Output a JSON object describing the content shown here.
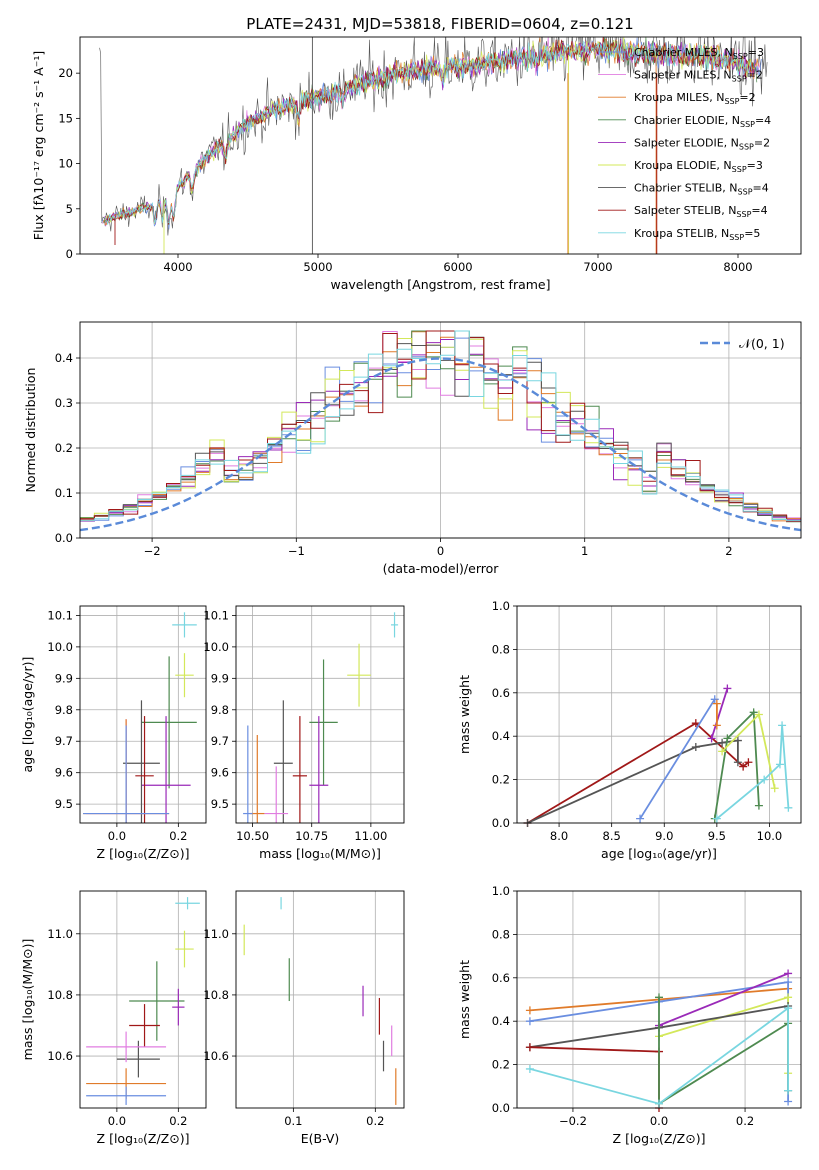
{
  "figure_title": "PLATE=2431, MJD=53818, FIBERID=0604, z=0.121",
  "colors": {
    "s1": "#6a8ee0",
    "s2": "#e07de0",
    "s3": "#e07b2a",
    "s4": "#4e8a50",
    "s5": "#9a2ab8",
    "s6": "#d3e85a",
    "s7": "#555555",
    "s8": "#a01818",
    "s9": "#79d6e0"
  },
  "chart_data": [
    {
      "id": "spectrum",
      "type": "line",
      "xlabel": "wavelength [Angstrom, rest frame]",
      "ylabel": "Flux [fλ10⁻¹⁷ erg cm⁻² s⁻¹ A⁻¹]",
      "xlim": [
        3300,
        8450
      ],
      "ylim": [
        0,
        24
      ],
      "xticks": [
        4000,
        5000,
        6000,
        7000,
        8000
      ],
      "yticks": [
        0,
        5,
        10,
        15,
        20
      ],
      "legend_position": "right",
      "continuum": [
        [
          3450,
          3.6
        ],
        [
          3600,
          4.4
        ],
        [
          3800,
          5.2
        ],
        [
          3950,
          6.5
        ],
        [
          4100,
          9.0
        ],
        [
          4300,
          12.0
        ],
        [
          4500,
          14.5
        ],
        [
          4700,
          16.0
        ],
        [
          4900,
          17.0
        ],
        [
          5100,
          17.8
        ],
        [
          5300,
          18.8
        ],
        [
          5500,
          19.8
        ],
        [
          5700,
          20.3
        ],
        [
          5900,
          20.7
        ],
        [
          6100,
          20.9
        ],
        [
          6300,
          21.3
        ],
        [
          6500,
          21.8
        ],
        [
          6700,
          22.3
        ],
        [
          6900,
          22.5
        ],
        [
          7100,
          22.6
        ],
        [
          7300,
          22.4
        ],
        [
          7500,
          22.2
        ],
        [
          7700,
          22.0
        ],
        [
          7900,
          21.4
        ],
        [
          8100,
          20.8
        ],
        [
          8200,
          20.5
        ]
      ],
      "series": [
        {
          "name": "Chabrier MILES, N_SSP=3",
          "label": "Chabrier MILES, N",
          "sub": "SSP",
          "tail": "=3",
          "color": "#6a8ee0"
        },
        {
          "name": "Salpeter MILES, N_SSP=2",
          "label": "Salpeter MILES, N",
          "sub": "SSP",
          "tail": "=2",
          "color": "#e07de0"
        },
        {
          "name": "Kroupa MILES, N_SSP=2",
          "label": "Kroupa MILES, N",
          "sub": "SSP",
          "tail": "=2",
          "color": "#e07b2a"
        },
        {
          "name": "Chabrier ELODIE, N_SSP=4",
          "label": "Chabrier ELODIE, N",
          "sub": "SSP",
          "tail": "=4",
          "color": "#4e8a50"
        },
        {
          "name": "Salpeter ELODIE, N_SSP=2",
          "label": "Salpeter ELODIE, N",
          "sub": "SSP",
          "tail": "=2",
          "color": "#9a2ab8"
        },
        {
          "name": "Kroupa ELODIE, N_SSP=3",
          "label": "Kroupa ELODIE, N",
          "sub": "SSP",
          "tail": "=3",
          "color": "#d3e85a"
        },
        {
          "name": "Chabrier STELIB, N_SSP=4",
          "label": "Chabrier STELIB, N",
          "sub": "SSP",
          "tail": "=4",
          "color": "#555555"
        },
        {
          "name": "Salpeter STELIB, N_SSP=4",
          "label": "Salpeter STELIB, N",
          "sub": "SSP",
          "tail": "=4",
          "color": "#a01818"
        },
        {
          "name": "Kroupa STELIB, N_SSP=5",
          "label": "Kroupa STELIB, N",
          "sub": "SSP",
          "tail": "=5",
          "color": "#79d6e0"
        }
      ]
    },
    {
      "id": "residuals",
      "type": "histogram",
      "xlabel": "(data-model)/error",
      "ylabel": "Normed distribution",
      "xlim": [
        -2.5,
        2.5
      ],
      "ylim": [
        0,
        0.48
      ],
      "xticks": [
        -2,
        -1,
        0,
        1,
        2
      ],
      "yticks": [
        0.0,
        0.1,
        0.2,
        0.3,
        0.4
      ],
      "legend": "𝒩(0, 1)",
      "legend_position": "top-right",
      "bin_width": 0.1,
      "reference_curve": "normal(0,1)"
    },
    {
      "id": "age-vs-Z",
      "type": "scatter",
      "xlabel": "Z [log₁₀(Z/Z⊙)]",
      "ylabel": "age  [log₁₀(age/yr)]",
      "xlim": [
        -0.12,
        0.29
      ],
      "ylim": [
        9.44,
        10.13
      ],
      "xticks": [
        0.0,
        0.2
      ],
      "yticks": [
        9.5,
        9.6,
        9.7,
        9.8,
        9.9,
        10.0,
        10.1
      ],
      "points": [
        {
          "x": 0.22,
          "y": 10.07,
          "xerr": 0.04,
          "yerr": 0.04,
          "color": "#79d6e0"
        },
        {
          "x": 0.22,
          "y": 9.91,
          "xerr": 0.03,
          "yerr": 0.07,
          "color": "#d3e85a"
        },
        {
          "x": 0.17,
          "y": 9.76,
          "xerr": 0.09,
          "yerr": 0.21,
          "color": "#4e8a50"
        },
        {
          "x": 0.16,
          "y": 9.56,
          "xerr": 0.08,
          "yerr": 0.22,
          "color": "#9a2ab8"
        },
        {
          "x": 0.08,
          "y": 9.63,
          "xerr": 0.06,
          "yerr": 0.2,
          "color": "#555555"
        },
        {
          "x": 0.09,
          "y": 9.59,
          "xerr": 0.03,
          "yerr": 0.19,
          "color": "#a01818"
        },
        {
          "x": 0.03,
          "y": 9.47,
          "xerr": 0.13,
          "yerr": 0.3,
          "color": "#e07de0"
        },
        {
          "x": 0.03,
          "y": 9.47,
          "xerr": 0.14,
          "yerr": 0.3,
          "color": "#e07b2a"
        },
        {
          "x": 0.03,
          "y": 9.47,
          "xerr": 0.14,
          "yerr": 0.28,
          "color": "#6a8ee0"
        }
      ]
    },
    {
      "id": "age-vs-mass",
      "type": "scatter",
      "xlabel": "mass [log₁₀(M/M⊙)]",
      "ylabel": "",
      "xlim": [
        10.43,
        11.14
      ],
      "ylim": [
        9.44,
        10.13
      ],
      "xticks": [
        10.5,
        10.75,
        11.0
      ],
      "yticks": [
        9.5,
        9.6,
        9.7,
        9.8,
        9.9,
        10.0,
        10.1
      ],
      "points": [
        {
          "x": 11.1,
          "y": 10.07,
          "xerr": 0.015,
          "yerr": 0.04,
          "color": "#79d6e0"
        },
        {
          "x": 10.95,
          "y": 9.91,
          "xerr": 0.05,
          "yerr": 0.1,
          "color": "#d3e85a"
        },
        {
          "x": 10.8,
          "y": 9.76,
          "xerr": 0.06,
          "yerr": 0.2,
          "color": "#4e8a50"
        },
        {
          "x": 10.78,
          "y": 9.56,
          "xerr": 0.04,
          "yerr": 0.22,
          "color": "#9a2ab8"
        },
        {
          "x": 10.63,
          "y": 9.63,
          "xerr": 0.04,
          "yerr": 0.2,
          "color": "#555555"
        },
        {
          "x": 10.7,
          "y": 9.59,
          "xerr": 0.03,
          "yerr": 0.19,
          "color": "#a01818"
        },
        {
          "x": 10.6,
          "y": 9.47,
          "xerr": 0.05,
          "yerr": 0.15,
          "color": "#e07de0"
        },
        {
          "x": 10.52,
          "y": 9.47,
          "xerr": 0.03,
          "yerr": 0.25,
          "color": "#e07b2a"
        },
        {
          "x": 10.48,
          "y": 9.47,
          "xerr": 0.02,
          "yerr": 0.28,
          "color": "#6a8ee0"
        }
      ]
    },
    {
      "id": "weight-vs-age",
      "type": "line",
      "xlabel": "age  [log₁₀(age/yr)]",
      "ylabel": "mass weight",
      "xlim": [
        7.6,
        10.3
      ],
      "ylim": [
        0,
        1
      ],
      "xticks": [
        8.0,
        8.5,
        9.0,
        9.5,
        10.0
      ],
      "yticks": [
        0.0,
        0.2,
        0.4,
        0.6,
        0.8,
        1.0
      ],
      "series": [
        {
          "color": "#a01818",
          "x": [
            7.7,
            9.3,
            9.75,
            9.8
          ],
          "y": [
            0.0,
            0.46,
            0.26,
            0.28
          ]
        },
        {
          "color": "#555555",
          "x": [
            7.7,
            9.3,
            9.55,
            9.7,
            9.7
          ],
          "y": [
            0.0,
            0.35,
            0.37,
            0.38,
            0.28
          ]
        },
        {
          "color": "#6a8ee0",
          "x": [
            8.77,
            9.48
          ],
          "y": [
            0.02,
            0.57
          ]
        },
        {
          "color": "#9a2ab8",
          "x": [
            9.45,
            9.6
          ],
          "y": [
            0.39,
            0.62
          ]
        },
        {
          "color": "#e07b2a",
          "x": [
            9.5,
            9.5
          ],
          "y": [
            0.45,
            0.55
          ]
        },
        {
          "color": "#4e8a50",
          "x": [
            9.48,
            9.6,
            9.85,
            9.9
          ],
          "y": [
            0.02,
            0.39,
            0.51,
            0.08
          ]
        },
        {
          "color": "#d3e85a",
          "x": [
            9.55,
            9.9,
            10.05
          ],
          "y": [
            0.33,
            0.5,
            0.16
          ]
        },
        {
          "color": "#79d6e0",
          "x": [
            9.5,
            9.95,
            10.1,
            10.12,
            10.18
          ],
          "y": [
            0.02,
            0.2,
            0.27,
            0.45,
            0.07
          ]
        }
      ]
    },
    {
      "id": "mass-vs-Z",
      "type": "scatter",
      "xlabel": "Z [log₁₀(Z/Z⊙)]",
      "ylabel": "mass [log₁₀(M/M⊙)]",
      "xlim": [
        -0.12,
        0.29
      ],
      "ylim": [
        10.43,
        11.14
      ],
      "xticks": [
        0.0,
        0.2
      ],
      "yticks": [
        10.6,
        10.8,
        11.0
      ],
      "points": [
        {
          "x": 0.23,
          "y": 11.1,
          "xerr": 0.04,
          "yerr": 0.02,
          "color": "#79d6e0"
        },
        {
          "x": 0.22,
          "y": 10.95,
          "xerr": 0.03,
          "yerr": 0.06,
          "color": "#d3e85a"
        },
        {
          "x": 0.13,
          "y": 10.78,
          "xerr": 0.09,
          "yerr": 0.13,
          "color": "#4e8a50"
        },
        {
          "x": 0.2,
          "y": 10.76,
          "xerr": 0.02,
          "yerr": 0.06,
          "color": "#9a2ab8"
        },
        {
          "x": 0.07,
          "y": 10.59,
          "xerr": 0.07,
          "yerr": 0.06,
          "color": "#555555"
        },
        {
          "x": 0.09,
          "y": 10.7,
          "xerr": 0.05,
          "yerr": 0.07,
          "color": "#a01818"
        },
        {
          "x": 0.03,
          "y": 10.63,
          "xerr": 0.13,
          "yerr": 0.05,
          "color": "#e07de0"
        },
        {
          "x": 0.03,
          "y": 10.51,
          "xerr": 0.13,
          "yerr": 0.05,
          "color": "#e07b2a"
        },
        {
          "x": 0.03,
          "y": 10.47,
          "xerr": 0.13,
          "yerr": 0.03,
          "color": "#6a8ee0"
        }
      ]
    },
    {
      "id": "mass-vs-ebv",
      "type": "scatter",
      "xlabel": "E(B-V)",
      "ylabel": "",
      "xlim": [
        0.03,
        0.235
      ],
      "ylim": [
        10.43,
        11.14
      ],
      "xticks": [
        0.1,
        0.2
      ],
      "yticks": [
        10.6,
        10.8,
        11.0
      ],
      "points": [
        {
          "x": 0.085,
          "y": 11.1,
          "yerr": 0.02,
          "color": "#79d6e0"
        },
        {
          "x": 0.04,
          "y": 10.98,
          "yerr": 0.05,
          "color": "#d3e85a"
        },
        {
          "x": 0.095,
          "y": 10.85,
          "yerr": 0.07,
          "color": "#4e8a50"
        },
        {
          "x": 0.185,
          "y": 10.78,
          "yerr": 0.05,
          "color": "#9a2ab8"
        },
        {
          "x": 0.21,
          "y": 10.6,
          "yerr": 0.05,
          "color": "#555555"
        },
        {
          "x": 0.205,
          "y": 10.73,
          "yerr": 0.06,
          "color": "#a01818"
        },
        {
          "x": 0.22,
          "y": 10.65,
          "yerr": 0.05,
          "color": "#e07de0"
        },
        {
          "x": 0.225,
          "y": 10.5,
          "yerr": 0.06,
          "color": "#e07b2a"
        }
      ]
    },
    {
      "id": "weight-vs-Z",
      "type": "line",
      "xlabel": "Z [log₁₀(Z/Z⊙)]",
      "ylabel": "mass weight",
      "xlim": [
        -0.33,
        0.33
      ],
      "ylim": [
        0,
        1
      ],
      "xticks": [
        -0.2,
        0.0,
        0.2
      ],
      "yticks": [
        0.0,
        0.2,
        0.4,
        0.6,
        0.8,
        1.0
      ],
      "series": [
        {
          "color": "#e07b2a",
          "x": [
            -0.3,
            0.0,
            0.3
          ],
          "y": [
            0.45,
            0.5,
            0.55
          ]
        },
        {
          "color": "#6a8ee0",
          "x": [
            -0.3,
            0.0,
            0.3,
            0.3
          ],
          "y": [
            0.4,
            0.49,
            0.58,
            0.03
          ]
        },
        {
          "color": "#9a2ab8",
          "x": [
            0.0,
            0.3
          ],
          "y": [
            0.38,
            0.62
          ]
        },
        {
          "color": "#d3e85a",
          "x": [
            0.0,
            0.3,
            0.3
          ],
          "y": [
            0.33,
            0.51,
            0.16
          ]
        },
        {
          "color": "#555555",
          "x": [
            -0.3,
            0.0,
            0.3
          ],
          "y": [
            0.28,
            0.37,
            0.47
          ]
        },
        {
          "color": "#a01818",
          "x": [
            -0.3,
            0.0,
            0.0
          ],
          "y": [
            0.28,
            0.26,
            0.0
          ]
        },
        {
          "color": "#4e8a50",
          "x": [
            0.0,
            0.0,
            0.3,
            0.3
          ],
          "y": [
            0.51,
            0.02,
            0.39,
            0.08
          ]
        },
        {
          "color": "#79d6e0",
          "x": [
            -0.3,
            0.0,
            0.3,
            0.3
          ],
          "y": [
            0.18,
            0.02,
            0.46,
            0.08
          ]
        }
      ]
    }
  ]
}
